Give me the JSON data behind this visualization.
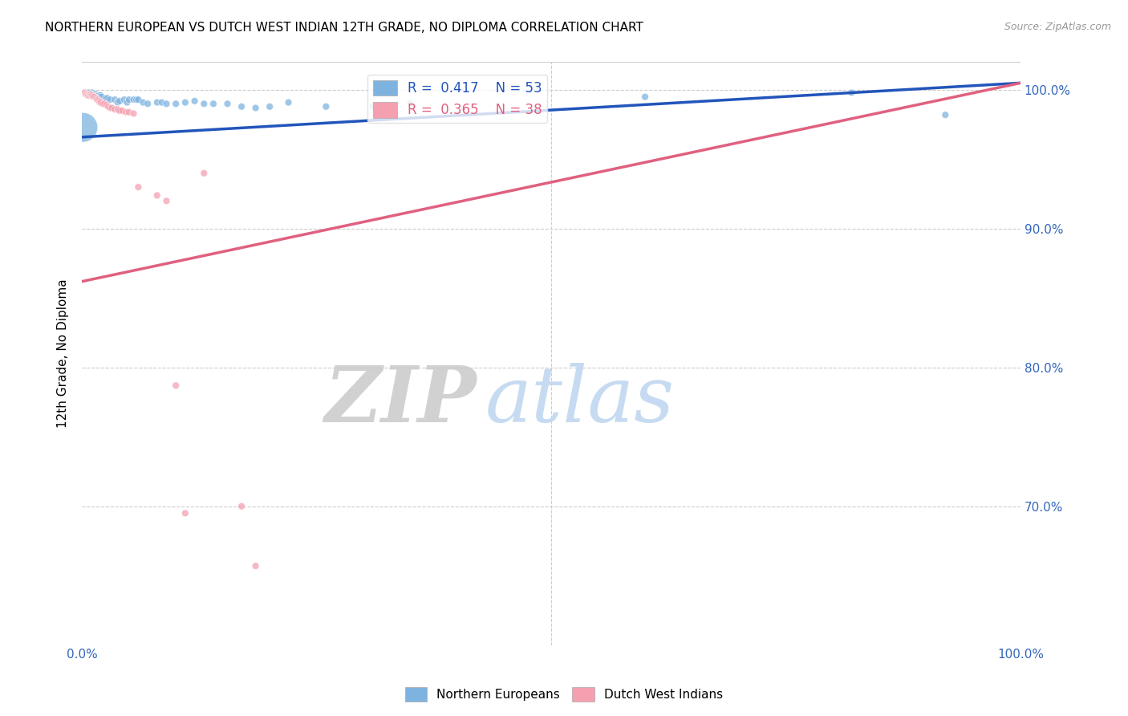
{
  "title": "NORTHERN EUROPEAN VS DUTCH WEST INDIAN 12TH GRADE, NO DIPLOMA CORRELATION CHART",
  "source": "Source: ZipAtlas.com",
  "ylabel": "12th Grade, No Diploma",
  "xlabel": "",
  "xlim": [
    0.0,
    1.0
  ],
  "ylim": [
    0.6,
    1.02
  ],
  "yticks": [
    0.7,
    0.8,
    0.9,
    1.0
  ],
  "ytick_labels": [
    "70.0%",
    "80.0%",
    "90.0%",
    "100.0%"
  ],
  "xticks": [
    0.0,
    0.1,
    0.2,
    0.3,
    0.4,
    0.5,
    0.6,
    0.7,
    0.8,
    0.9,
    1.0
  ],
  "xtick_labels": [
    "0.0%",
    "",
    "",
    "",
    "",
    "",
    "",
    "",
    "",
    "",
    "100.0%"
  ],
  "blue_color": "#7EB3E0",
  "pink_color": "#F4A0B0",
  "blue_line_color": "#2255BB",
  "pink_line_color": "#E06080",
  "legend_blue_R": "0.417",
  "legend_blue_N": "53",
  "legend_pink_R": "0.365",
  "legend_pink_N": "38",
  "legend_label_blue": "Northern Europeans",
  "legend_label_pink": "Dutch West Indians",
  "watermark_zip": "ZIP",
  "watermark_atlas": "atlas",
  "blue_line_x0": 0.0,
  "blue_line_y0": 0.966,
  "blue_line_x1": 1.0,
  "blue_line_y1": 1.005,
  "pink_line_x0": 0.0,
  "pink_line_y0": 0.862,
  "pink_line_x1": 1.0,
  "pink_line_y1": 1.005,
  "blue_points": [
    [
      0.003,
      0.998
    ],
    [
      0.004,
      0.997
    ],
    [
      0.005,
      0.998
    ],
    [
      0.006,
      0.998
    ],
    [
      0.007,
      0.997
    ],
    [
      0.008,
      0.998
    ],
    [
      0.009,
      0.997
    ],
    [
      0.01,
      0.997
    ],
    [
      0.011,
      0.998
    ],
    [
      0.012,
      0.996
    ],
    [
      0.013,
      0.997
    ],
    [
      0.014,
      0.996
    ],
    [
      0.015,
      0.997
    ],
    [
      0.016,
      0.996
    ],
    [
      0.017,
      0.996
    ],
    [
      0.018,
      0.996
    ],
    [
      0.019,
      0.995
    ],
    [
      0.02,
      0.996
    ],
    [
      0.021,
      0.995
    ],
    [
      0.025,
      0.994
    ],
    [
      0.027,
      0.994
    ],
    [
      0.03,
      0.993
    ],
    [
      0.035,
      0.993
    ],
    [
      0.038,
      0.991
    ],
    [
      0.04,
      0.992
    ],
    [
      0.045,
      0.993
    ],
    [
      0.048,
      0.991
    ],
    [
      0.05,
      0.993
    ],
    [
      0.055,
      0.993
    ],
    [
      0.058,
      0.993
    ],
    [
      0.06,
      0.993
    ],
    [
      0.065,
      0.991
    ],
    [
      0.07,
      0.99
    ],
    [
      0.08,
      0.991
    ],
    [
      0.085,
      0.991
    ],
    [
      0.09,
      0.99
    ],
    [
      0.001,
      0.973
    ],
    [
      0.1,
      0.99
    ],
    [
      0.11,
      0.991
    ],
    [
      0.12,
      0.992
    ],
    [
      0.13,
      0.99
    ],
    [
      0.14,
      0.99
    ],
    [
      0.155,
      0.99
    ],
    [
      0.17,
      0.988
    ],
    [
      0.185,
      0.987
    ],
    [
      0.2,
      0.988
    ],
    [
      0.22,
      0.991
    ],
    [
      0.26,
      0.988
    ],
    [
      0.31,
      0.988
    ],
    [
      0.35,
      0.99
    ],
    [
      0.6,
      0.995
    ],
    [
      0.82,
      0.998
    ],
    [
      0.92,
      0.982
    ]
  ],
  "blue_sizes": [
    40,
    40,
    40,
    40,
    40,
    40,
    40,
    40,
    40,
    40,
    40,
    40,
    40,
    40,
    40,
    40,
    40,
    40,
    40,
    40,
    40,
    40,
    40,
    40,
    40,
    40,
    40,
    40,
    40,
    40,
    40,
    40,
    40,
    40,
    40,
    40,
    700,
    40,
    40,
    40,
    40,
    40,
    40,
    40,
    40,
    40,
    40,
    40,
    40,
    40,
    40,
    40,
    40
  ],
  "pink_points": [
    [
      0.003,
      0.998
    ],
    [
      0.004,
      0.997
    ],
    [
      0.005,
      0.997
    ],
    [
      0.006,
      0.996
    ],
    [
      0.007,
      0.996
    ],
    [
      0.008,
      0.996
    ],
    [
      0.009,
      0.997
    ],
    [
      0.01,
      0.996
    ],
    [
      0.011,
      0.996
    ],
    [
      0.012,
      0.995
    ],
    [
      0.013,
      0.995
    ],
    [
      0.015,
      0.994
    ],
    [
      0.016,
      0.993
    ],
    [
      0.017,
      0.993
    ],
    [
      0.018,
      0.992
    ],
    [
      0.019,
      0.991
    ],
    [
      0.02,
      0.991
    ],
    [
      0.022,
      0.99
    ],
    [
      0.024,
      0.99
    ],
    [
      0.026,
      0.989
    ],
    [
      0.028,
      0.988
    ],
    [
      0.03,
      0.987
    ],
    [
      0.032,
      0.987
    ],
    [
      0.035,
      0.986
    ],
    [
      0.038,
      0.986
    ],
    [
      0.04,
      0.985
    ],
    [
      0.043,
      0.985
    ],
    [
      0.047,
      0.984
    ],
    [
      0.05,
      0.984
    ],
    [
      0.055,
      0.983
    ],
    [
      0.06,
      0.93
    ],
    [
      0.08,
      0.924
    ],
    [
      0.09,
      0.92
    ],
    [
      0.1,
      0.787
    ],
    [
      0.17,
      0.7
    ],
    [
      0.11,
      0.695
    ],
    [
      0.185,
      0.657
    ],
    [
      0.13,
      0.94
    ]
  ],
  "pink_sizes": [
    40,
    40,
    40,
    40,
    40,
    40,
    40,
    40,
    40,
    40,
    40,
    40,
    40,
    40,
    40,
    40,
    40,
    40,
    40,
    40,
    40,
    40,
    40,
    40,
    40,
    40,
    40,
    40,
    40,
    40,
    40,
    40,
    40,
    40,
    40,
    40,
    40,
    40
  ]
}
